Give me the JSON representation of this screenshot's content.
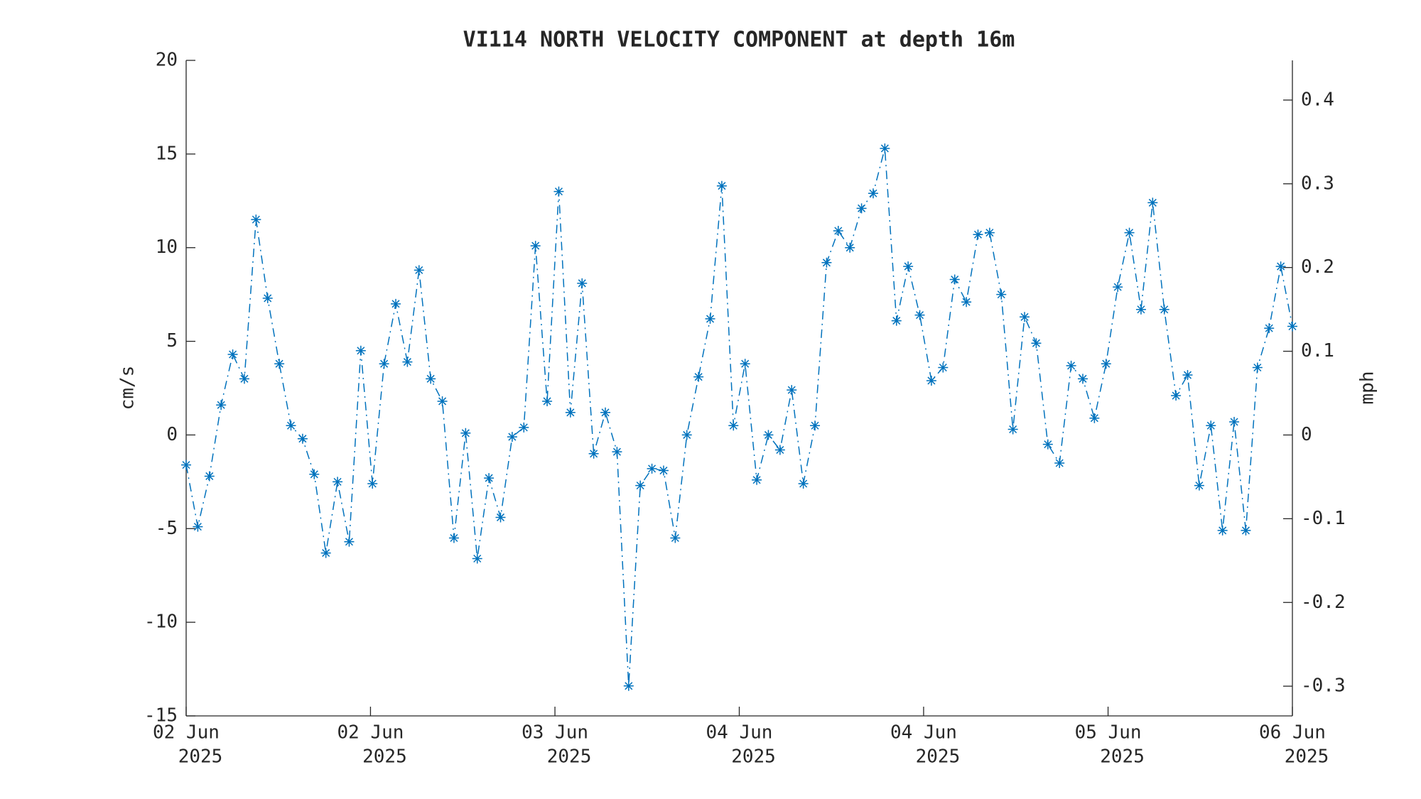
{
  "chart_data": {
    "type": "line",
    "title": "VI114 NORTH VELOCITY COMPONENT at depth 16m",
    "y_label": "cm/s",
    "y2_label": "mph",
    "series": [
      {
        "name": "North velocity",
        "color": "#0072bd",
        "values": [
          -1.6,
          -4.9,
          -2.2,
          1.6,
          4.3,
          3.0,
          11.5,
          7.3,
          3.8,
          0.5,
          -0.2,
          -2.1,
          -6.3,
          -2.5,
          -5.7,
          4.5,
          -2.6,
          3.8,
          7.0,
          3.9,
          8.8,
          3.0,
          1.8,
          -5.5,
          0.1,
          -6.6,
          -2.3,
          -4.4,
          -0.1,
          0.4,
          10.1,
          1.8,
          13.0,
          1.2,
          8.1,
          -1.0,
          1.2,
          -0.9,
          -13.4,
          -2.7,
          -1.8,
          -1.9,
          -5.5,
          0.0,
          3.1,
          6.2,
          13.3,
          0.5,
          3.8,
          -2.4,
          0.0,
          -0.8,
          2.4,
          -2.6,
          0.5,
          9.2,
          10.9,
          10.0,
          12.1,
          12.9,
          15.3,
          6.1,
          9.0,
          6.4,
          2.9,
          3.6,
          8.3,
          7.1,
          10.7,
          10.8,
          7.5,
          0.3,
          6.3,
          4.9,
          -0.5,
          -1.5,
          3.7,
          3.0,
          0.9,
          3.8,
          7.9,
          10.8,
          6.7,
          12.4,
          6.7,
          2.1,
          3.2,
          -2.7,
          0.5,
          -5.1,
          0.7,
          -5.1,
          3.6,
          5.7,
          9.0,
          5.8
        ]
      }
    ],
    "xlim": [
      0,
      95
    ],
    "xticks": [
      {
        "value": 0,
        "label": "02 Jun"
      },
      {
        "value": 15.83,
        "label": "02 Jun"
      },
      {
        "value": 31.67,
        "label": "03 Jun"
      },
      {
        "value": 47.5,
        "label": "04 Jun"
      },
      {
        "value": 63.33,
        "label": "04 Jun"
      },
      {
        "value": 79.17,
        "label": "05 Jun"
      },
      {
        "value": 95,
        "label": "06 Jun"
      }
    ],
    "xtick_sublabels": [
      "2025",
      "2025",
      "2025",
      "2025",
      "2025",
      "2025",
      "2025"
    ],
    "ylim": [
      -15,
      20
    ],
    "yticks": [
      -15,
      -10,
      -5,
      0,
      5,
      10,
      15,
      20
    ],
    "y2lim": [
      -0.3355,
      0.4474
    ],
    "y2ticks": [
      -0.3,
      -0.2,
      -0.1,
      0,
      0.1,
      0.2,
      0.3,
      0.4
    ]
  }
}
